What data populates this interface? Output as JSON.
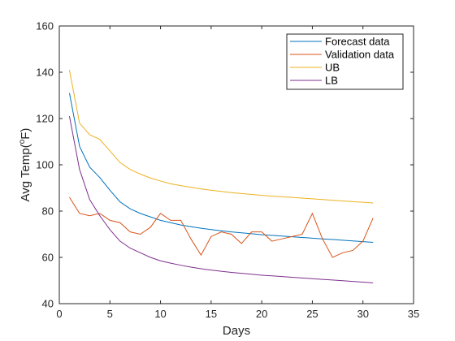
{
  "chart_data": {
    "type": "line",
    "xlabel": "Days",
    "ylabel_main": "Avg Temp(",
    "ylabel_sup": "o",
    "ylabel_tail": "F)",
    "xlim": [
      0,
      35
    ],
    "ylim": [
      40,
      160
    ],
    "xticks": [
      0,
      5,
      10,
      15,
      20,
      25,
      30,
      35
    ],
    "yticks": [
      40,
      60,
      80,
      100,
      120,
      140,
      160
    ],
    "grid": false,
    "legend_position": "top-right",
    "x": [
      1,
      2,
      3,
      4,
      5,
      6,
      7,
      8,
      9,
      10,
      11,
      12,
      13,
      14,
      15,
      16,
      17,
      18,
      19,
      20,
      21,
      22,
      23,
      24,
      25,
      26,
      27,
      28,
      29,
      30,
      31
    ],
    "series": [
      {
        "name": "Forecast data",
        "color": "#0072BD",
        "values": [
          131,
          108,
          99,
          94.5,
          89,
          84,
          81,
          79,
          77.5,
          76,
          75,
          74,
          73.3,
          72.6,
          72,
          71.5,
          71,
          70.6,
          70.2,
          69.8,
          69.5,
          69.2,
          68.9,
          68.6,
          68.3,
          68,
          67.7,
          67.4,
          67.1,
          66.8,
          66.5
        ]
      },
      {
        "name": "Validation data",
        "color": "#D95319",
        "values": [
          86,
          79,
          78,
          79,
          76,
          75,
          71,
          70,
          73,
          79,
          76,
          76,
          68,
          61,
          69,
          71,
          70,
          66,
          71,
          71,
          67,
          68,
          69,
          70,
          79,
          68,
          60,
          62,
          63,
          67,
          77
        ]
      },
      {
        "name": "UB",
        "color": "#EDB120",
        "values": [
          141,
          118,
          113,
          111,
          106,
          101,
          98,
          96,
          94.3,
          93,
          91.8,
          91,
          90.3,
          89.6,
          89,
          88.5,
          88,
          87.6,
          87.2,
          86.8,
          86.5,
          86.2,
          85.9,
          85.6,
          85.3,
          85,
          84.7,
          84.4,
          84.1,
          83.8,
          83.5
        ]
      },
      {
        "name": "LB",
        "color": "#7E2F8E",
        "values": [
          121,
          98,
          85,
          78,
          72,
          67,
          64,
          62,
          60,
          58.5,
          57.5,
          56.6,
          55.8,
          55.1,
          54.5,
          54,
          53.5,
          53.1,
          52.7,
          52.3,
          52,
          51.7,
          51.4,
          51.1,
          50.8,
          50.5,
          50.2,
          49.9,
          49.6,
          49.3,
          49
        ]
      }
    ]
  }
}
